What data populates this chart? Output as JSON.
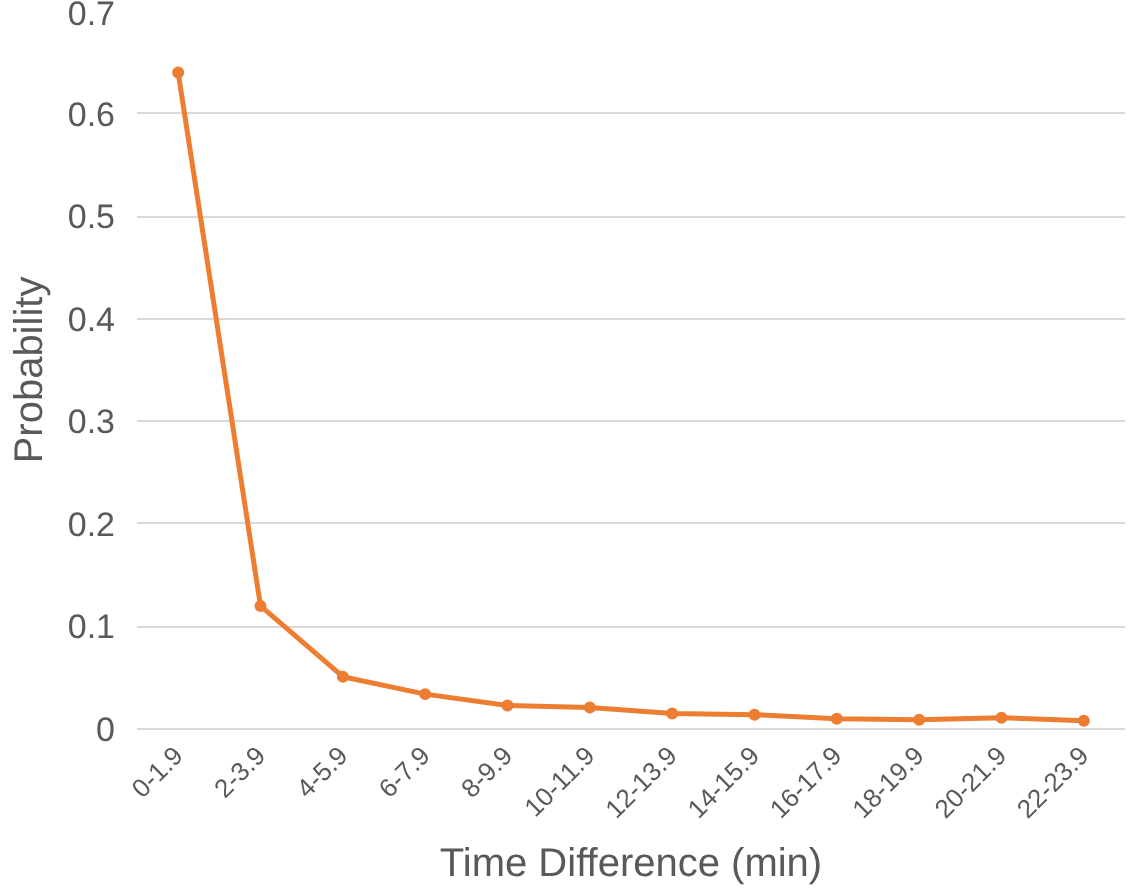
{
  "chart_data": {
    "type": "line",
    "xlabel": "Time Difference (min)",
    "ylabel": "Probability",
    "categories": [
      "0-1.9",
      "2-3.9",
      "4-5.9",
      "6-7.9",
      "8-9.9",
      "10-11.9",
      "12-13.9",
      "14-15.9",
      "16-17.9",
      "18-19.9",
      "20-21.9",
      "22-23.9"
    ],
    "series": [
      {
        "color": "#ed7d31",
        "values": [
          0.64,
          0.12,
          0.051,
          0.034,
          0.023,
          0.021,
          0.015,
          0.014,
          0.01,
          0.009,
          0.011,
          0.008
        ]
      }
    ],
    "ylim": [
      0,
      0.7
    ],
    "yticks": [
      0,
      0.1,
      0.2,
      0.3,
      0.4,
      0.5,
      0.6,
      0.7
    ],
    "grid": "y",
    "marker": "circle",
    "line_style": "solid"
  }
}
